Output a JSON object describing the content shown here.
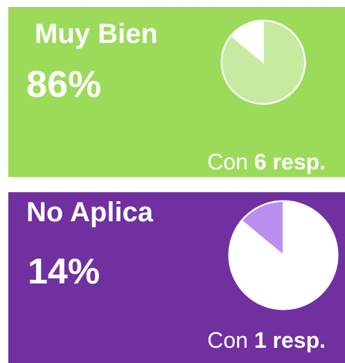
{
  "chart_data": [
    {
      "type": "pie",
      "title": "Muy Bien",
      "values": [
        86
      ],
      "value_labels": [
        "86%"
      ],
      "direction": "clockwise",
      "background": "#9cdb5a",
      "color": "#c5eaa0",
      "rest_color": "#ffffff",
      "footer_prefix": "Con",
      "count": 6,
      "footer_suffix": "resp."
    },
    {
      "type": "pie",
      "title": "No Aplica",
      "values": [
        14
      ],
      "value_labels": [
        "14%"
      ],
      "direction": "counterclockwise",
      "background": "#7030a0",
      "color": "#b98ff0",
      "rest_color": "#ffffff",
      "footer_prefix": "Con",
      "count": 1,
      "footer_suffix": "resp."
    }
  ]
}
